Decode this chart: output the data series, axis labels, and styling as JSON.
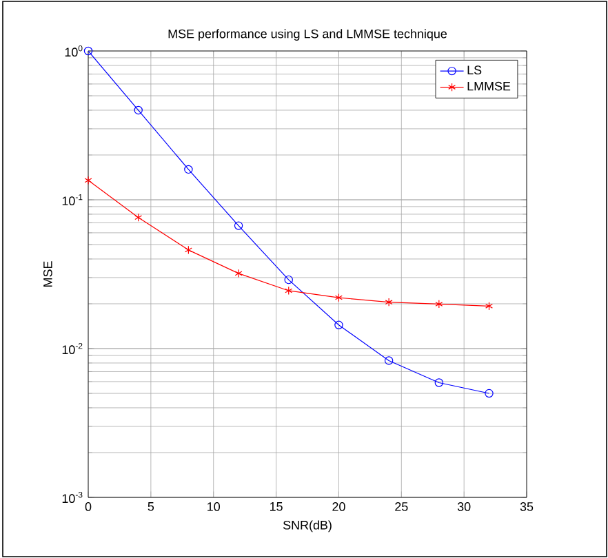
{
  "chart_data": {
    "type": "line",
    "title": "MSE performance using LS and LMMSE technique",
    "xlabel": "SNR(dB)",
    "ylabel": "MSE",
    "x": [
      0,
      4,
      8,
      12,
      16,
      20,
      24,
      28,
      32
    ],
    "series": [
      {
        "name": "LS",
        "color": "#0000ff",
        "marker": "circle",
        "values": [
          1,
          0.4,
          0.16,
          0.067,
          0.029,
          0.0144,
          0.0083,
          0.0059,
          0.005
        ]
      },
      {
        "name": "LMMSE",
        "color": "#ff0000",
        "marker": "cross",
        "values": [
          0.135,
          0.076,
          0.046,
          0.032,
          0.0245,
          0.022,
          0.0205,
          0.0199,
          0.0193
        ]
      }
    ],
    "xlim": [
      0,
      35
    ],
    "xticks": [
      0,
      5,
      10,
      15,
      20,
      25,
      30,
      35
    ],
    "ylim": [
      0.001,
      1
    ],
    "yticks": [
      {
        "value": 0.001,
        "label": "10$^{-3}$"
      },
      {
        "value": 0.01,
        "label": "10$^{-2}$"
      },
      {
        "value": 0.1,
        "label": "10$^{-1}$"
      },
      {
        "value": 1,
        "label": "10$^{0}$"
      }
    ],
    "log": "y",
    "grid": true,
    "legend": "top right",
    "line_style": "solid"
  }
}
